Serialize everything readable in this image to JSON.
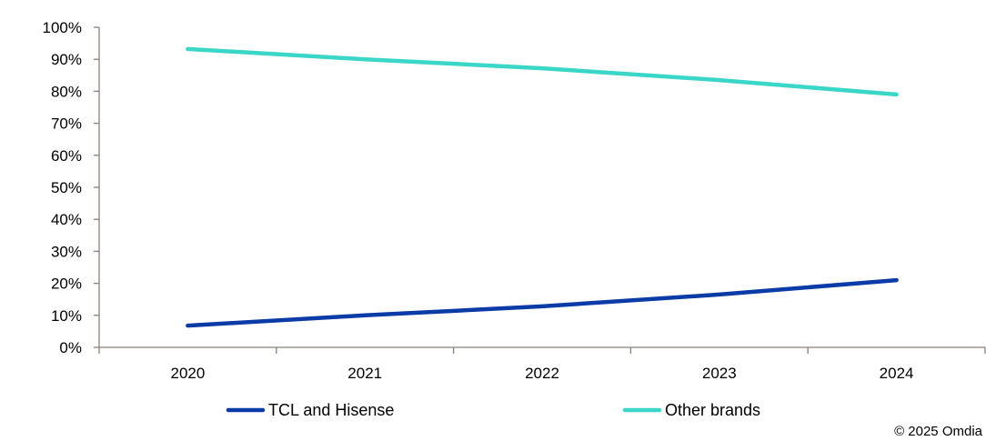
{
  "chart_data": {
    "type": "line",
    "categories": [
      "2020",
      "2021",
      "2022",
      "2023",
      "2024"
    ],
    "series": [
      {
        "name": "TCL and Hisense",
        "values": [
          6.8,
          10.0,
          12.8,
          16.5,
          21.0
        ],
        "color": "#0A3BA6"
      },
      {
        "name": "Other brands",
        "values": [
          93.2,
          90.0,
          87.2,
          83.5,
          79.0
        ],
        "color": "#3AD6C8"
      }
    ],
    "y_ticks": [
      "0%",
      "10%",
      "20%",
      "30%",
      "40%",
      "50%",
      "60%",
      "70%",
      "80%",
      "90%",
      "100%"
    ],
    "ylim": [
      0,
      100
    ],
    "grid": false,
    "legend_position": "bottom",
    "title": "",
    "xlabel": "",
    "ylabel": ""
  },
  "credit": "© 2025 Omdia",
  "colors": {
    "axis": "#8a7f78"
  }
}
